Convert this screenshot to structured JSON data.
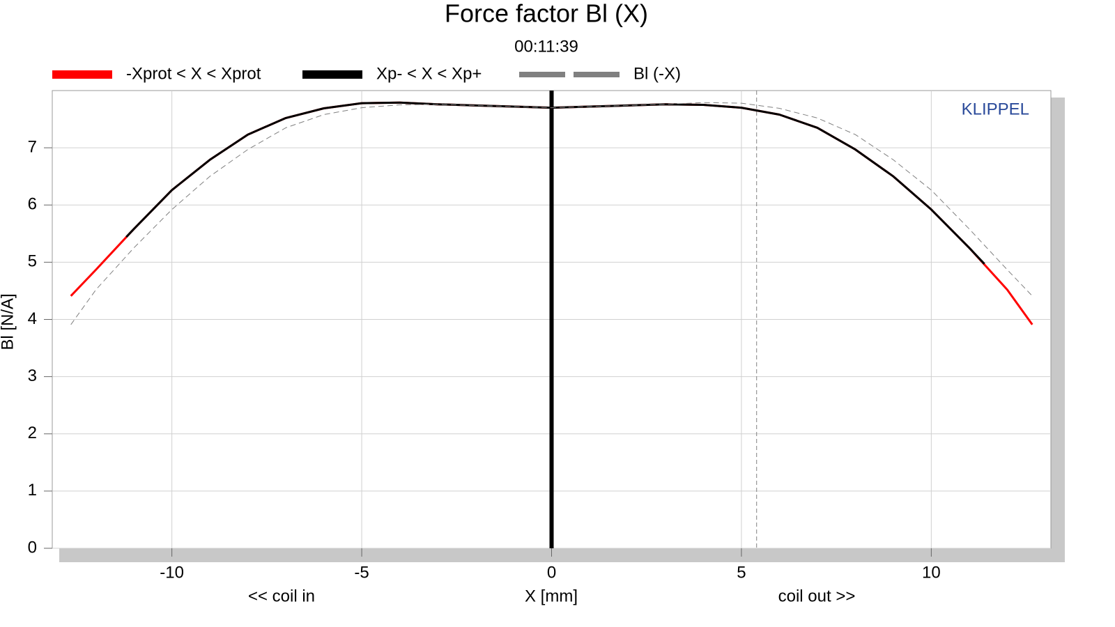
{
  "chart_data": {
    "type": "line",
    "title": "Force factor Bl (X)",
    "subtitle": "00:11:39",
    "xlabel": "X [mm]",
    "ylabel": "Bl [N/A]",
    "annotations": {
      "brand": "KLIPPEL",
      "left": "<< coil in",
      "right": "coil out >>"
    },
    "xlim": [
      -13.15,
      13.15
    ],
    "ylim": [
      0,
      8
    ],
    "xticks": [
      -10,
      -5,
      0,
      5,
      10
    ],
    "yticks": [
      0,
      1,
      2,
      3,
      4,
      5,
      6,
      7
    ],
    "grid": true,
    "vlines": [
      {
        "x": 0,
        "color": "#000000",
        "style": "solid"
      },
      {
        "x": 5.4,
        "color": "#808080",
        "style": "dashed"
      }
    ],
    "series": [
      {
        "name": "-Xprot < X < Xprot",
        "color": "#ff0000",
        "style": "solid",
        "width": 3,
        "x": [
          -12.66,
          -12,
          -11,
          -10,
          -9,
          -8,
          -7,
          -6,
          -5,
          -4,
          -3,
          -2,
          -1,
          0,
          1,
          2,
          3,
          4,
          5,
          6,
          7,
          8,
          9,
          10,
          11,
          12,
          12.66
        ],
        "values": [
          4.41,
          4.87,
          5.58,
          6.26,
          6.79,
          7.23,
          7.52,
          7.69,
          7.78,
          7.79,
          7.76,
          7.74,
          7.72,
          7.7,
          7.72,
          7.74,
          7.76,
          7.75,
          7.7,
          7.58,
          7.35,
          6.97,
          6.5,
          5.92,
          5.25,
          4.52,
          3.91
        ]
      },
      {
        "name": "Xp- < X < Xp+",
        "color": "#000000",
        "style": "solid",
        "width": 3,
        "x": [
          -11.2,
          -11,
          -10,
          -9,
          -8,
          -7,
          -6,
          -5,
          -4,
          -3,
          -2,
          -1,
          0,
          1,
          2,
          3,
          4,
          5,
          6,
          7,
          8,
          9,
          10,
          11,
          11.4
        ],
        "values": [
          5.44,
          5.58,
          6.26,
          6.79,
          7.23,
          7.52,
          7.69,
          7.78,
          7.79,
          7.76,
          7.74,
          7.72,
          7.7,
          7.72,
          7.74,
          7.76,
          7.75,
          7.7,
          7.58,
          7.35,
          6.97,
          6.5,
          5.92,
          5.25,
          4.97
        ]
      },
      {
        "name": "Bl (-X)",
        "color": "#808080",
        "style": "dashed",
        "width": 1,
        "x": [
          -12.66,
          -12,
          -11,
          -10,
          -9,
          -8,
          -7,
          -6,
          -5,
          -4,
          -3,
          -2,
          -1,
          0,
          1,
          2,
          3,
          4,
          5,
          6,
          7,
          8,
          9,
          10,
          11,
          12,
          12.66
        ],
        "values": [
          3.91,
          4.52,
          5.25,
          5.92,
          6.5,
          6.97,
          7.35,
          7.58,
          7.7,
          7.75,
          7.76,
          7.74,
          7.72,
          7.7,
          7.72,
          7.74,
          7.76,
          7.79,
          7.78,
          7.69,
          7.52,
          7.23,
          6.79,
          6.26,
          5.58,
          4.87,
          4.41
        ]
      }
    ]
  }
}
